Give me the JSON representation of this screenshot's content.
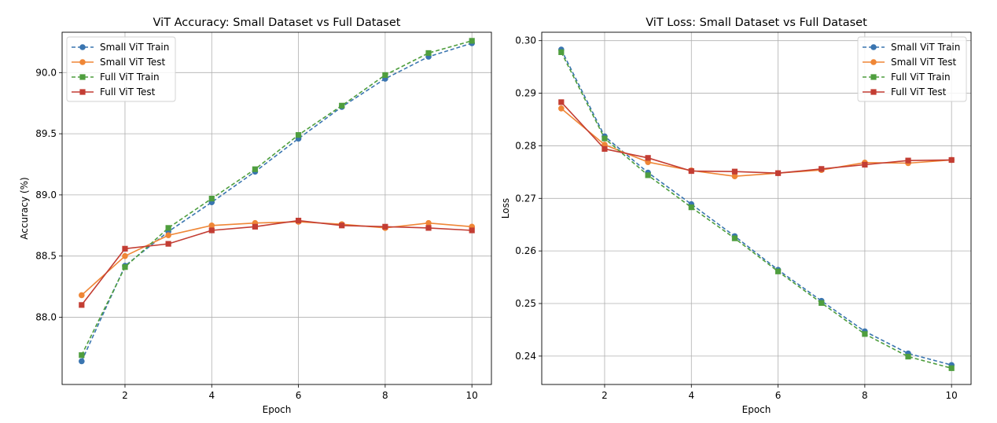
{
  "colors": {
    "small_train": "#3a75b0",
    "small_test": "#ef8636",
    "full_train": "#4f9e3e",
    "full_test": "#c33d33"
  },
  "chart_data": [
    {
      "type": "line",
      "title": "ViT Accuracy: Small Dataset vs Full Dataset",
      "xlabel": "Epoch",
      "ylabel": "Accuracy (%)",
      "x": [
        1,
        2,
        3,
        4,
        5,
        6,
        7,
        8,
        9,
        10
      ],
      "xticks": [
        2,
        4,
        6,
        8,
        10
      ],
      "xtick_labels": [
        "2",
        "4",
        "6",
        "8",
        "10"
      ],
      "xlim": [
        0.55,
        10.45
      ],
      "ylim": [
        87.45,
        90.33
      ],
      "yticks": [
        88.0,
        88.5,
        89.0,
        89.5,
        90.0
      ],
      "ytick_labels": [
        "88.0",
        "88.5",
        "89.0",
        "89.5",
        "90.0"
      ],
      "grid": true,
      "legend_position": "top-left",
      "series": [
        {
          "name": "Small ViT Train",
          "marker": "circle",
          "dashed": true,
          "color_key": "small_train",
          "values": [
            87.64,
            88.42,
            88.7,
            88.94,
            89.19,
            89.46,
            89.72,
            89.95,
            90.13,
            90.24
          ]
        },
        {
          "name": "Small ViT Test",
          "marker": "circle",
          "dashed": false,
          "color_key": "small_test",
          "values": [
            88.18,
            88.5,
            88.67,
            88.75,
            88.77,
            88.78,
            88.76,
            88.73,
            88.77,
            88.74
          ]
        },
        {
          "name": "Full ViT Train",
          "marker": "square",
          "dashed": true,
          "color_key": "full_train",
          "values": [
            87.69,
            88.41,
            88.73,
            88.97,
            89.21,
            89.49,
            89.73,
            89.98,
            90.16,
            90.26
          ]
        },
        {
          "name": "Full ViT Test",
          "marker": "square",
          "dashed": false,
          "color_key": "full_test",
          "values": [
            88.1,
            88.56,
            88.6,
            88.71,
            88.74,
            88.79,
            88.75,
            88.74,
            88.73,
            88.71
          ]
        }
      ]
    },
    {
      "type": "line",
      "title": "ViT Loss: Small Dataset vs Full Dataset",
      "xlabel": "Epoch",
      "ylabel": "Loss",
      "x": [
        1,
        2,
        3,
        4,
        5,
        6,
        7,
        8,
        9,
        10
      ],
      "xticks": [
        2,
        4,
        6,
        8,
        10
      ],
      "xtick_labels": [
        "2",
        "4",
        "6",
        "8",
        "10"
      ],
      "xlim": [
        0.55,
        10.45
      ],
      "ylim": [
        0.2346,
        0.3016
      ],
      "yticks": [
        0.24,
        0.25,
        0.26,
        0.27,
        0.28,
        0.29,
        0.3
      ],
      "ytick_labels": [
        "0.24",
        "0.25",
        "0.26",
        "0.27",
        "0.28",
        "0.29",
        "0.30"
      ],
      "grid": true,
      "legend_position": "top-right",
      "series": [
        {
          "name": "Small ViT Train",
          "marker": "circle",
          "dashed": true,
          "color_key": "small_train",
          "values": [
            0.2983,
            0.2818,
            0.2749,
            0.2689,
            0.2628,
            0.2564,
            0.2505,
            0.2447,
            0.2405,
            0.2383
          ]
        },
        {
          "name": "Small ViT Test",
          "marker": "circle",
          "dashed": false,
          "color_key": "small_test",
          "values": [
            0.2871,
            0.2802,
            0.2769,
            0.2753,
            0.2742,
            0.2748,
            0.2754,
            0.2768,
            0.2767,
            0.2773
          ]
        },
        {
          "name": "Full ViT Train",
          "marker": "square",
          "dashed": true,
          "color_key": "full_train",
          "values": [
            0.2978,
            0.2814,
            0.2744,
            0.2683,
            0.2624,
            0.2561,
            0.2501,
            0.2442,
            0.2399,
            0.2377
          ]
        },
        {
          "name": "Full ViT Test",
          "marker": "square",
          "dashed": false,
          "color_key": "full_test",
          "values": [
            0.2883,
            0.2794,
            0.2777,
            0.2752,
            0.2751,
            0.2748,
            0.2756,
            0.2764,
            0.2772,
            0.2773
          ]
        }
      ]
    }
  ]
}
